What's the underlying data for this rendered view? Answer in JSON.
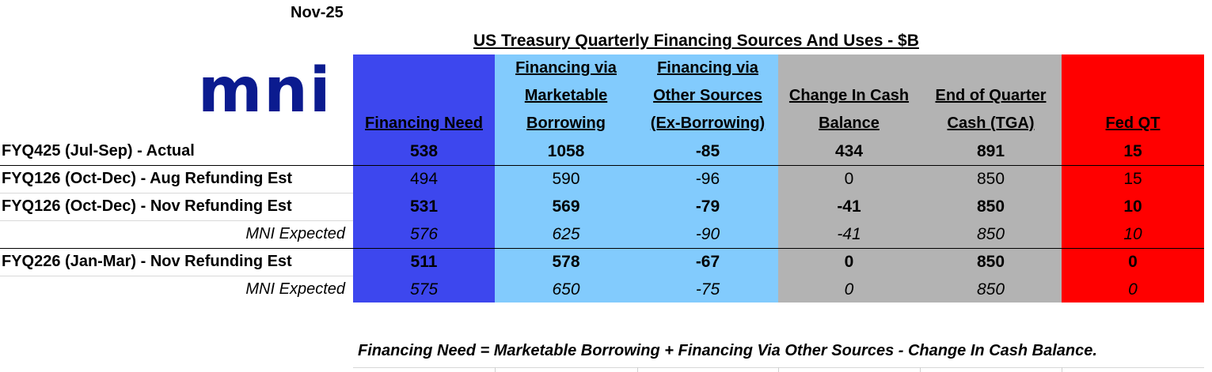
{
  "date": "Nov-25",
  "title": "US Treasury Quarterly Financing Sources And Uses - $B",
  "logo_text": "mni",
  "colors": {
    "financing_need": "#3d47ee",
    "financing_light": "#82cbfd",
    "cash_grey": "#b3b3b3",
    "fed_qt_red": "#ff0000",
    "logo_navy": "#0b1b8f"
  },
  "headers": {
    "financing_need": [
      "Financing Need"
    ],
    "marketable": [
      "Financing via",
      "Marketable",
      "Borrowing"
    ],
    "other_sources": [
      "Financing via",
      "Other Sources",
      "(Ex-Borrowing)"
    ],
    "change_cash": [
      "Change In Cash",
      "Balance"
    ],
    "end_quarter": [
      "End of Quarter",
      "Cash (TGA)"
    ],
    "fed_qt": [
      "Fed QT"
    ]
  },
  "rows": [
    {
      "label": "FYQ425 (Jul-Sep) - Actual",
      "values": [
        "538",
        "1058",
        "-85",
        "434",
        "891",
        "15"
      ]
    },
    {
      "label": "FYQ126 (Oct-Dec) - Aug Refunding Est",
      "values": [
        "494",
        "590",
        "-96",
        "0",
        "850",
        "15"
      ]
    },
    {
      "label": "FYQ126 (Oct-Dec) - Nov Refunding Est",
      "values": [
        "531",
        "569",
        "-79",
        "-41",
        "850",
        "10"
      ]
    },
    {
      "label": "MNI Expected",
      "values": [
        "576",
        "625",
        "-90",
        "-41",
        "850",
        "10"
      ]
    },
    {
      "label": "FYQ226 (Jan-Mar) - Nov Refunding Est",
      "values": [
        "511",
        "578",
        "-67",
        "0",
        "850",
        "0"
      ]
    },
    {
      "label": "MNI Expected",
      "values": [
        "575",
        "650",
        "-75",
        "0",
        "850",
        "0"
      ]
    }
  ],
  "formula": "Financing Need = Marketable Borrowing + Financing Via Other Sources - Change In Cash Balance."
}
